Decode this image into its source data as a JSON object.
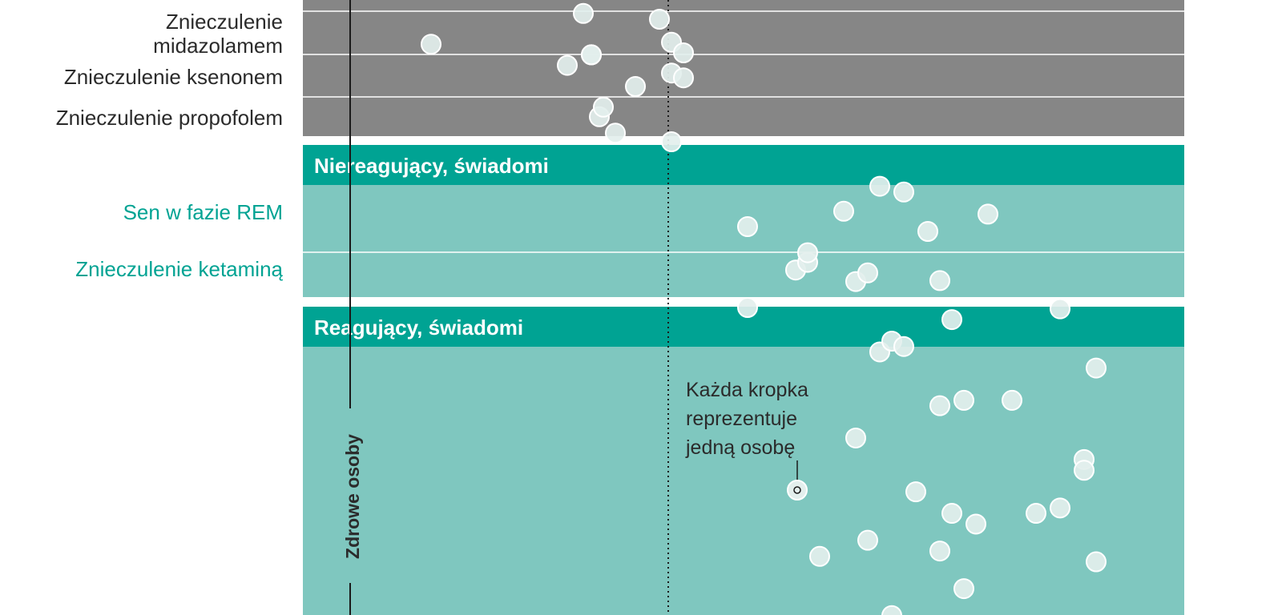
{
  "colors": {
    "unconscious_band": "#868686",
    "header_band": "#00a393",
    "conscious_band": "#7fc7bf",
    "teal_text": "#00a393",
    "dark_text": "#2b2b2b",
    "dot_fill": "#e3efed",
    "dot_stroke": "#ffffff"
  },
  "chart_data": {
    "type": "scatter",
    "groups": [
      {
        "header": "",
        "rows": [
          {
            "label": [
              "Znieczulenie",
              "midazolamem"
            ],
            "x": [
              300,
              490,
              500,
              585,
              600,
              615
            ],
            "y_offset": [
              0.55,
              -1.05,
              1.1,
              -0.75,
              0.45,
              1.0
            ]
          },
          {
            "label": [
              "Znieczulenie ksenonem"
            ],
            "x": [
              470,
              500,
              555,
              600,
              615
            ],
            "y_offset": [
              -0.6,
              -1.15,
              0.5,
              -0.2,
              0.05
            ]
          },
          {
            "label": [
              "Znieczulenie propofolem"
            ],
            "x": [
              510,
              515,
              530,
              600
            ],
            "y_offset": [
              -0.05,
              -0.55,
              0.8,
              1.25
            ]
          }
        ]
      },
      {
        "header": "Niereagujący, świadomi",
        "rows": [
          {
            "label": [
              "Sen w fazie REM"
            ],
            "x": [
              695,
              815,
              860,
              890,
              920,
              995
            ],
            "y_offset": [
              0.75,
              -0.05,
              -1.35,
              -1.05,
              1.0,
              0.1
            ]
          },
          {
            "label": [
              "Znieczulenie ketaminą"
            ],
            "x": [
              695,
              755,
              770,
              770,
              830,
              845,
              935
            ],
            "y_offset": [
              2.0,
              0.05,
              -0.35,
              -0.85,
              0.65,
              0.2,
              0.6
            ]
          }
        ]
      },
      {
        "header": "Reagujący, świadomi",
        "rows": [
          {
            "label": [],
            "x": [
              785,
              830,
              845,
              860,
              875,
              875,
              890,
              905,
              935,
              935,
              950,
              950,
              965,
              965,
              980,
              980,
              995,
              1025,
              1055,
              1085,
              1085,
              1115,
              1115,
              1130,
              1130,
              1190
            ],
            "y_offset": [
              0.75,
              -0.35,
              0.6,
              -1.15,
              -1.25,
              1.3,
              -1.2,
              0.15,
              -0.65,
              0.7,
              -1.45,
              0.35,
              1.05,
              -0.7,
              0.45,
              1.6,
              1.85,
              -0.7,
              0.35,
              0.3,
              -1.55,
              -0.15,
              -0.05,
              0.8,
              -1.0,
              1.45
            ]
          }
        ]
      }
    ],
    "axis_label": "Zdrowe osoby",
    "annotation": [
      "Każda kropka",
      "reprezentuje",
      "jedną osobę"
    ]
  }
}
